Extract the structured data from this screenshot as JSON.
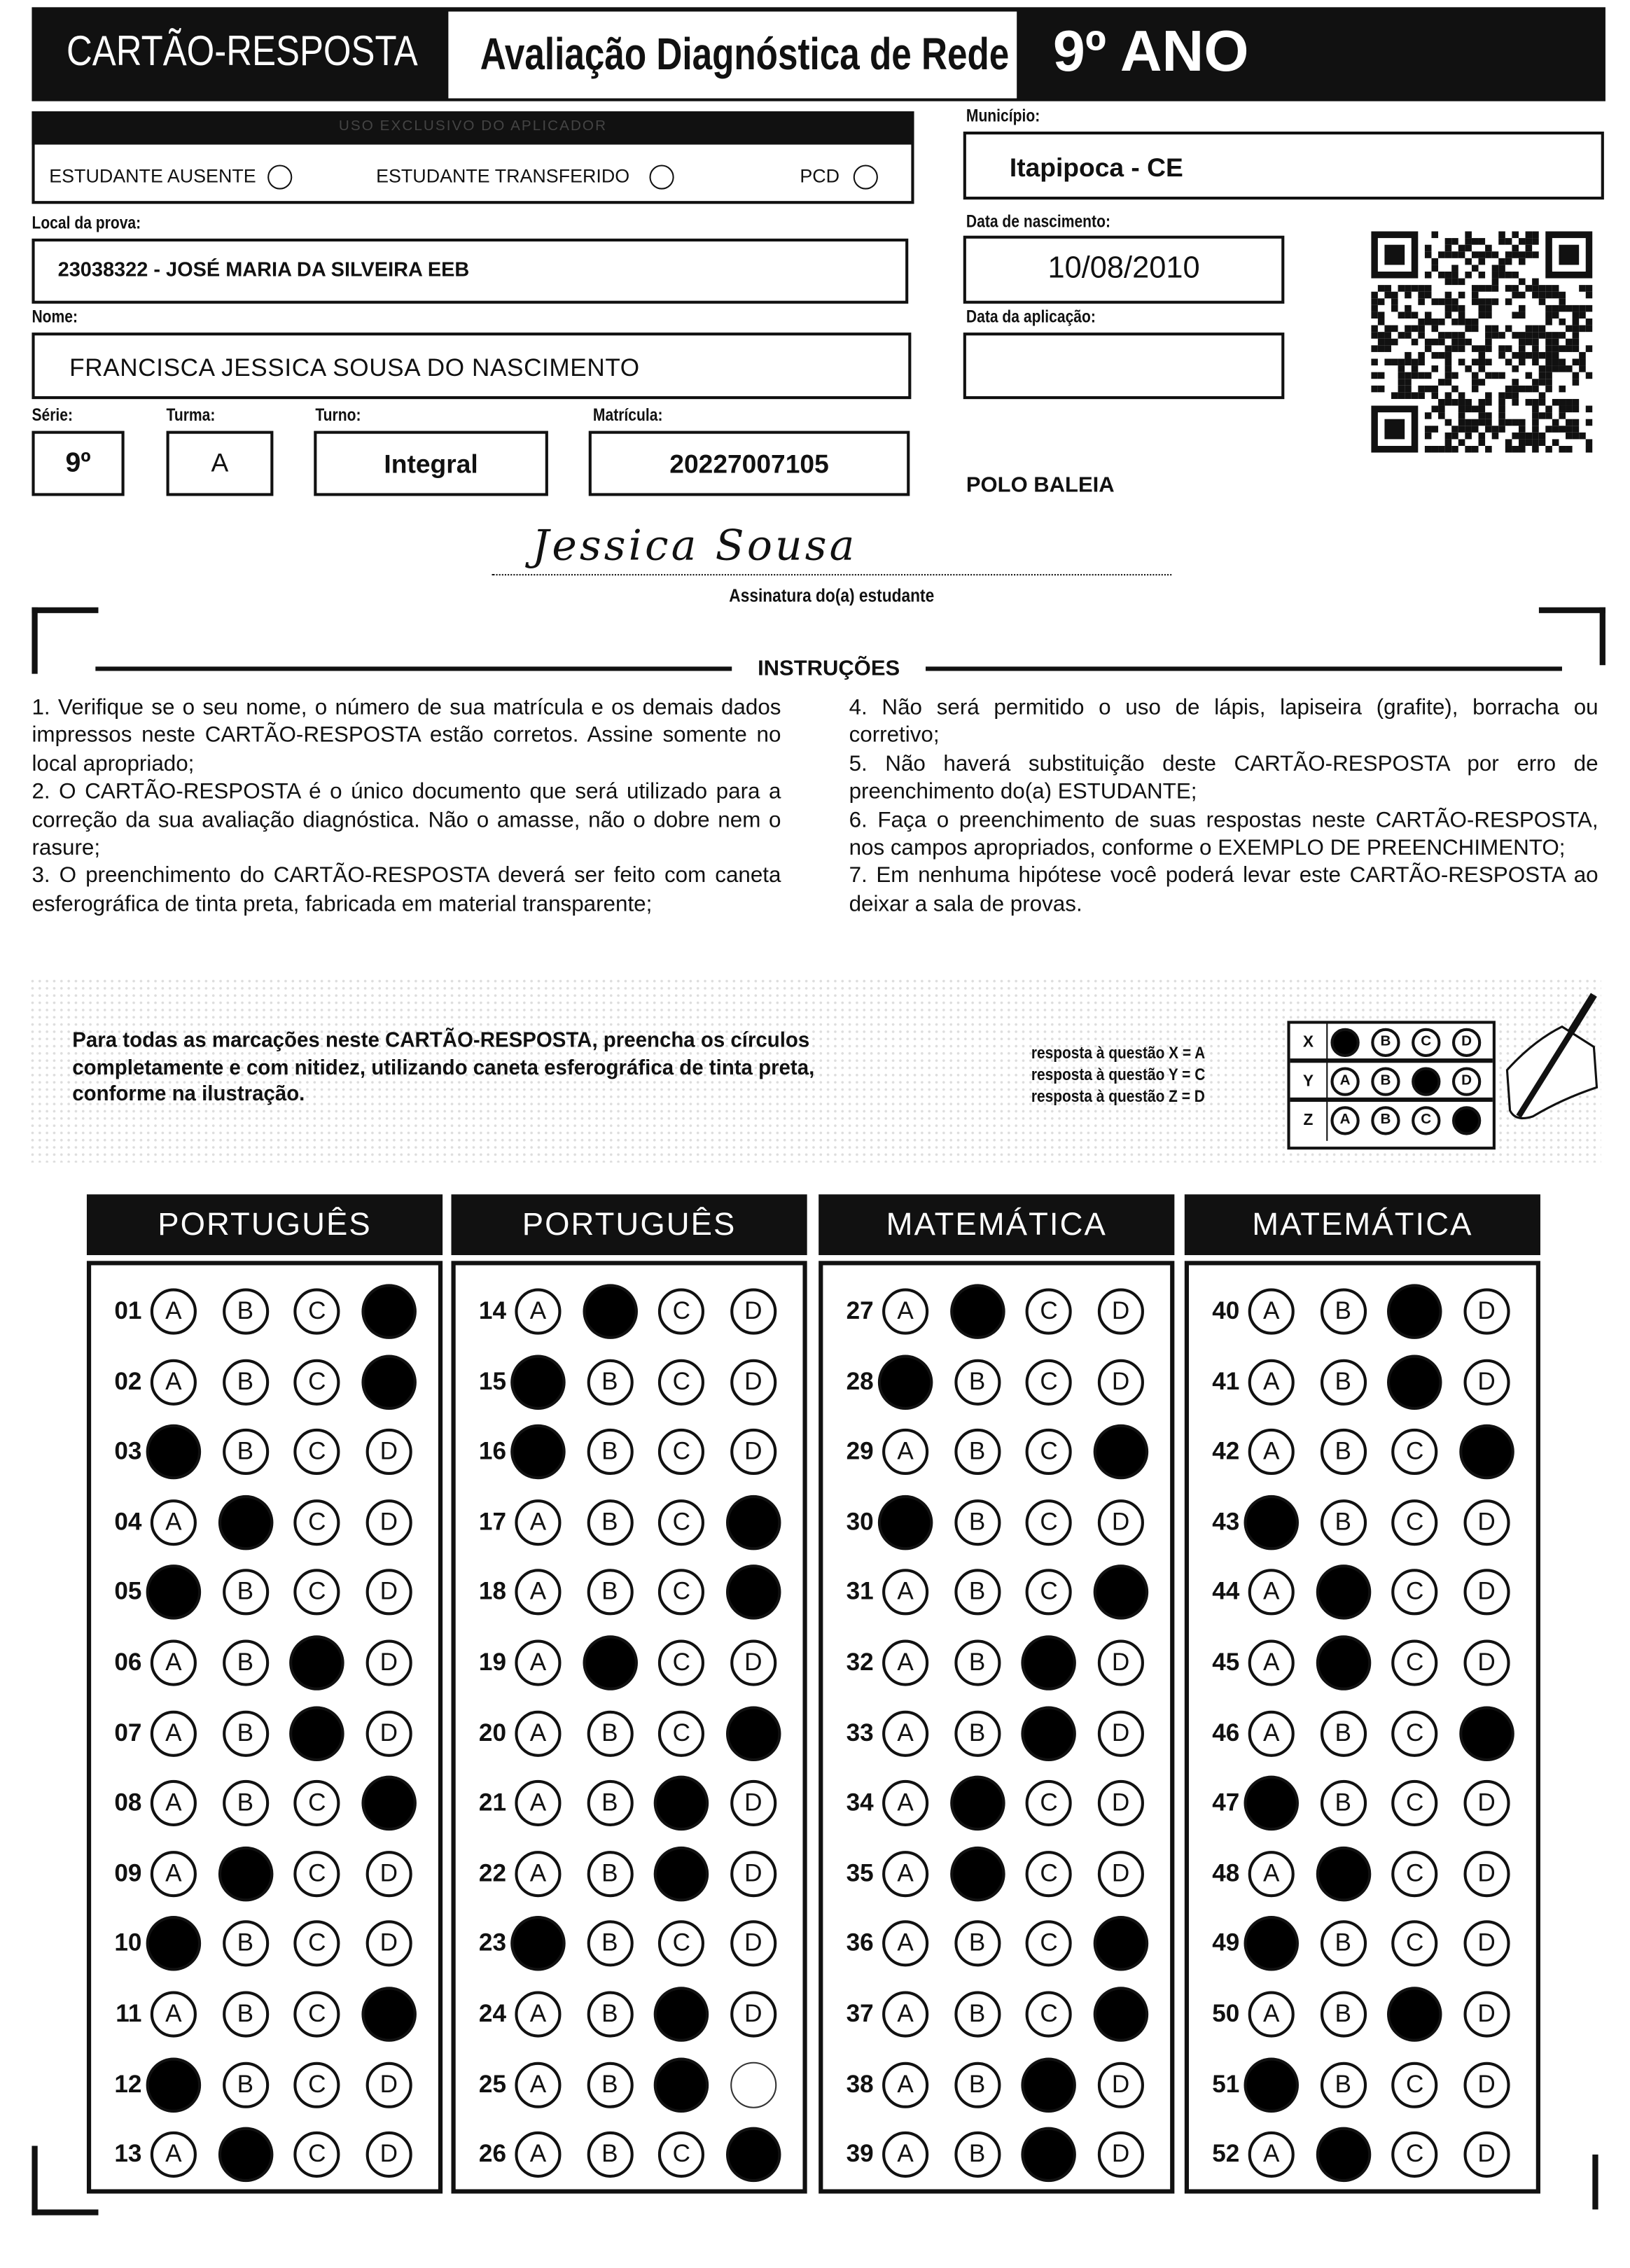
{
  "header": {
    "card_title": "CARTÃO-RESPOSTA",
    "evaluation_title": "Avaliação Diagnóstica de Rede",
    "grade": "9º ANO"
  },
  "applicator": {
    "title": "USO EXCLUSIVO DO APLICADOR",
    "options": [
      {
        "label": "ESTUDANTE AUSENTE",
        "checked": false
      },
      {
        "label": "ESTUDANTE TRANSFERIDO",
        "checked": false
      },
      {
        "label": "PCD",
        "checked": false
      }
    ]
  },
  "fields": {
    "municipio_label": "Município:",
    "municipio": "Itapipoca - CE",
    "local_label": "Local da prova:",
    "local": "23038322 - JOSÉ MARIA DA SILVEIRA EEB",
    "nascimento_label": "Data de nascimento:",
    "nascimento": "10/08/2010",
    "nome_label": "Nome:",
    "nome": "FRANCISCA JESSICA SOUSA DO NASCIMENTO",
    "aplicacao_label": "Data da aplicação:",
    "aplicacao": "",
    "serie_label": "Série:",
    "serie": "9º",
    "turma_label": "Turma:",
    "turma": "A",
    "turno_label": "Turno:",
    "turno": "Integral",
    "matricula_label": "Matrícula:",
    "matricula": "20227007105",
    "polo": "POLO BALEIA"
  },
  "signature": {
    "handwritten": "Jessica Sousa",
    "label": "Assinatura do(a) estudante"
  },
  "instructions": {
    "title": "INSTRUÇÕES",
    "left": [
      "1. Verifique se o seu nome, o número de sua matrícula e os demais dados impressos neste CARTÃO-RESPOSTA estão corretos. Assine somente no local apropriado;",
      "2. O CARTÃO-RESPOSTA é o único documento que será utilizado para a correção da sua avaliação diagnóstica. Não o amasse, não o dobre nem o rasure;",
      "3. O preenchimento do CARTÃO-RESPOSTA deverá ser feito com caneta esferográfica de tinta preta, fabricada em material transparente;"
    ],
    "right": [
      "4. Não será permitido o uso de lápis, lapiseira (grafite), borracha ou corretivo;",
      "5. Não haverá substituição deste CARTÃO-RESPOSTA por erro de preenchimento do(a) ESTUDANTE;",
      "6. Faça o preenchimento de suas respostas neste CARTÃO-RESPOSTA, nos campos apropriados, conforme o EXEMPLO DE PREENCHIMENTO;",
      "7. Em nenhuma hipótese você poderá levar este CARTÃO-RESPOSTA ao deixar a sala de provas."
    ]
  },
  "example": {
    "text": "Para todas as marcações neste CARTÃO-RESPOSTA, preencha os círculos completamente e com nitidez, utilizando caneta esferográfica de tinta preta, conforme na ilustração.",
    "legend": [
      "resposta à questão X = A",
      "resposta à questão Y = C",
      "resposta à questão Z = D"
    ],
    "rows": [
      {
        "label": "X",
        "marked": "A"
      },
      {
        "label": "Y",
        "marked": "C"
      },
      {
        "label": "Z",
        "marked": "D"
      }
    ]
  },
  "options": [
    "A",
    "B",
    "C",
    "D"
  ],
  "sections": [
    {
      "title": "PORTUGUÊS",
      "questions": [
        {
          "n": "01",
          "marked": "D"
        },
        {
          "n": "02",
          "marked": "D"
        },
        {
          "n": "03",
          "marked": "A"
        },
        {
          "n": "04",
          "marked": "B"
        },
        {
          "n": "05",
          "marked": "A"
        },
        {
          "n": "06",
          "marked": "C"
        },
        {
          "n": "07",
          "marked": "C"
        },
        {
          "n": "08",
          "marked": "D"
        },
        {
          "n": "09",
          "marked": "B"
        },
        {
          "n": "10",
          "marked": "A"
        },
        {
          "n": "11",
          "marked": "D"
        },
        {
          "n": "12",
          "marked": "A"
        },
        {
          "n": "13",
          "marked": "B"
        }
      ]
    },
    {
      "title": "PORTUGUÊS",
      "questions": [
        {
          "n": "14",
          "marked": "B"
        },
        {
          "n": "15",
          "marked": "A"
        },
        {
          "n": "16",
          "marked": "A"
        },
        {
          "n": "17",
          "marked": "D"
        },
        {
          "n": "18",
          "marked": "D"
        },
        {
          "n": "19",
          "marked": "B"
        },
        {
          "n": "20",
          "marked": "D"
        },
        {
          "n": "21",
          "marked": "C"
        },
        {
          "n": "22",
          "marked": "C"
        },
        {
          "n": "23",
          "marked": "A"
        },
        {
          "n": "24",
          "marked": "C"
        },
        {
          "n": "25",
          "marked": "C",
          "erased": "D"
        },
        {
          "n": "26",
          "marked": "D"
        }
      ]
    },
    {
      "title": "MATEMÁTICA",
      "questions": [
        {
          "n": "27",
          "marked": "B"
        },
        {
          "n": "28",
          "marked": "A"
        },
        {
          "n": "29",
          "marked": "D"
        },
        {
          "n": "30",
          "marked": "A"
        },
        {
          "n": "31",
          "marked": "D"
        },
        {
          "n": "32",
          "marked": "C"
        },
        {
          "n": "33",
          "marked": "C"
        },
        {
          "n": "34",
          "marked": "B"
        },
        {
          "n": "35",
          "marked": "B"
        },
        {
          "n": "36",
          "marked": "D"
        },
        {
          "n": "37",
          "marked": "D"
        },
        {
          "n": "38",
          "marked": "C"
        },
        {
          "n": "39",
          "marked": "C"
        }
      ]
    },
    {
      "title": "MATEMÁTICA",
      "questions": [
        {
          "n": "40",
          "marked": "C"
        },
        {
          "n": "41",
          "marked": "C"
        },
        {
          "n": "42",
          "marked": "D"
        },
        {
          "n": "43",
          "marked": "A"
        },
        {
          "n": "44",
          "marked": "B"
        },
        {
          "n": "45",
          "marked": "B"
        },
        {
          "n": "46",
          "marked": "D"
        },
        {
          "n": "47",
          "marked": "A"
        },
        {
          "n": "48",
          "marked": "B"
        },
        {
          "n": "49",
          "marked": "A"
        },
        {
          "n": "50",
          "marked": "C"
        },
        {
          "n": "51",
          "marked": "A"
        },
        {
          "n": "52",
          "marked": "B"
        }
      ]
    }
  ]
}
